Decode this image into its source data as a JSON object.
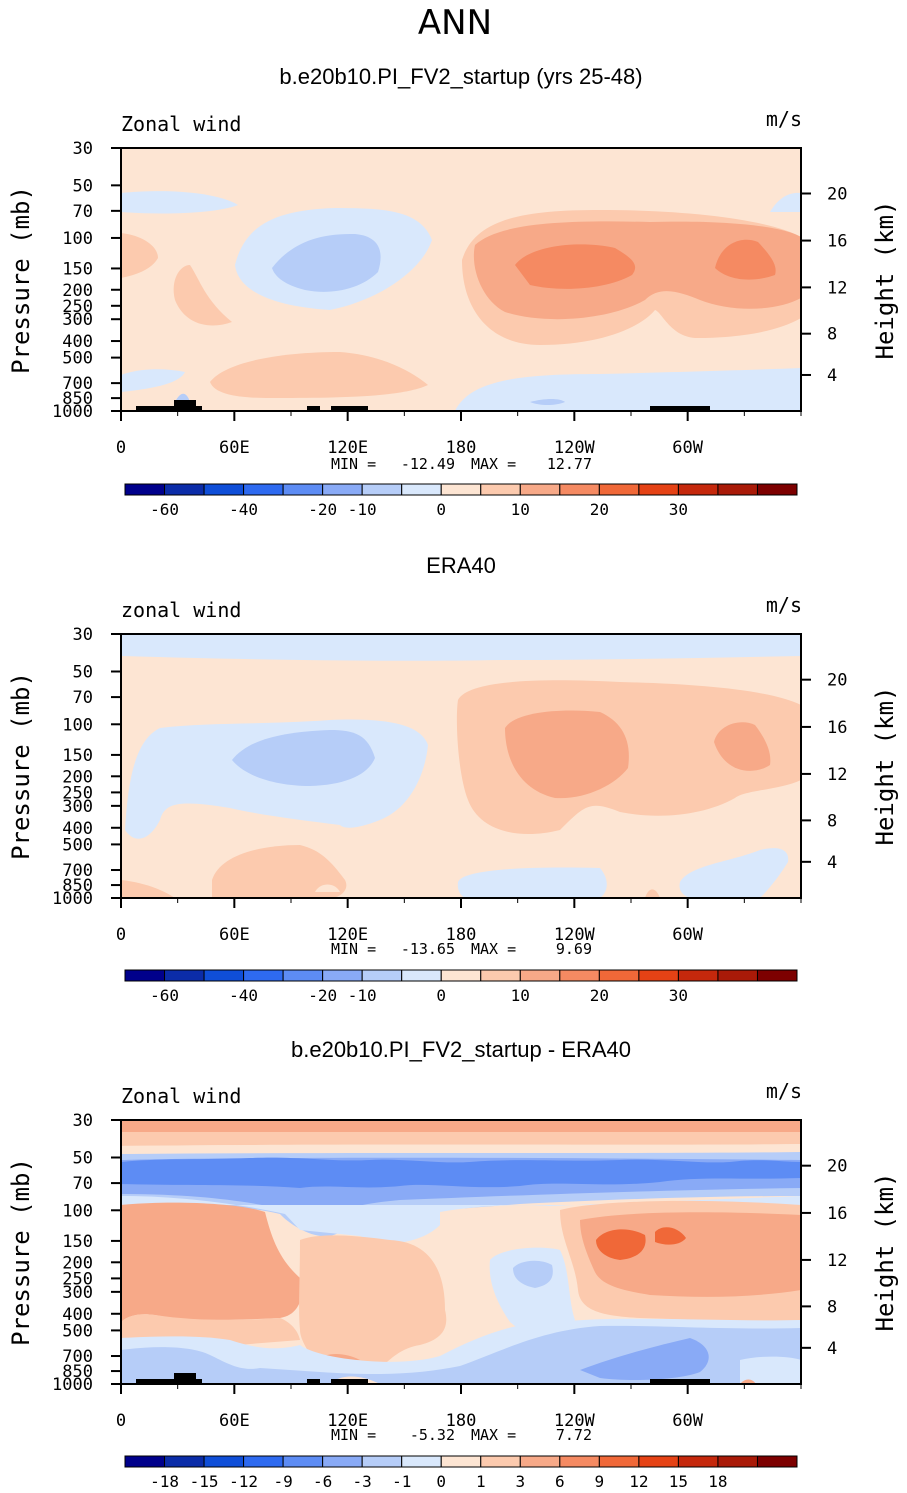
{
  "page_title": "ANN",
  "colors": {
    "scale": [
      "#00008b",
      "#0b2ca8",
      "#0f4ed8",
      "#2e6af0",
      "#5d8cf4",
      "#89aaf6",
      "#b6cdf8",
      "#d9e8fc",
      "#fde5d3",
      "#fccaae",
      "#f7a988",
      "#f58a62",
      "#f06838",
      "#e54215",
      "#c5280c",
      "#a91a08",
      "#7d0000"
    ]
  },
  "chart_data": [
    {
      "type": "heatmap",
      "title": "b.e20b10.PI_FV2_startup (yrs 25-48)",
      "left_label": "Zonal wind",
      "units": "m/s",
      "ylabel": "Pressure (mb)",
      "ylabel_right": "Height (km)",
      "y_ticks": [
        "30",
        "50",
        "70",
        "100",
        "150",
        "200",
        "250",
        "300",
        "400",
        "500",
        "700",
        "850",
        "1000"
      ],
      "y_ticks_right": [
        "20",
        "16",
        "12",
        "8",
        "4"
      ],
      "x_ticks": [
        "0",
        "60E",
        "120E",
        "180",
        "120W",
        "60W"
      ],
      "min_label": "MIN =",
      "min_value": "-12.49",
      "max_label": "MAX =",
      "max_value": "12.77",
      "colorbar_labels": [
        "-60",
        "-40",
        "-20",
        "-10",
        "0",
        "10",
        "20",
        "30"
      ]
    },
    {
      "type": "heatmap",
      "title": "ERA40",
      "left_label": "zonal wind",
      "units": "m/s",
      "ylabel": "Pressure (mb)",
      "ylabel_right": "Height (km)",
      "y_ticks": [
        "30",
        "50",
        "70",
        "100",
        "150",
        "200",
        "250",
        "300",
        "400",
        "500",
        "700",
        "850",
        "1000"
      ],
      "y_ticks_right": [
        "20",
        "16",
        "12",
        "8",
        "4"
      ],
      "x_ticks": [
        "0",
        "60E",
        "120E",
        "180",
        "120W",
        "60W"
      ],
      "min_label": "MIN =",
      "min_value": "-13.65",
      "max_label": "MAX =",
      "max_value": "9.69",
      "colorbar_labels": [
        "-60",
        "-40",
        "-20",
        "-10",
        "0",
        "10",
        "20",
        "30"
      ]
    },
    {
      "type": "heatmap",
      "title": "b.e20b10.PI_FV2_startup - ERA40",
      "left_label": "Zonal wind",
      "units": "m/s",
      "ylabel": "Pressure (mb)",
      "ylabel_right": "Height (km)",
      "y_ticks": [
        "30",
        "50",
        "70",
        "100",
        "150",
        "200",
        "250",
        "300",
        "400",
        "500",
        "700",
        "850",
        "1000"
      ],
      "y_ticks_right": [
        "20",
        "16",
        "12",
        "8",
        "4"
      ],
      "x_ticks": [
        "0",
        "60E",
        "120E",
        "180",
        "120W",
        "60W"
      ],
      "min_label": "MIN =",
      "min_value": "-5.32",
      "max_label": "MAX =",
      "max_value": "7.72",
      "colorbar_labels": [
        "-18",
        "-15",
        "-12",
        "-9",
        "-6",
        "-3",
        "-1",
        "0",
        "1",
        "3",
        "6",
        "9",
        "12",
        "15",
        "18"
      ]
    }
  ]
}
